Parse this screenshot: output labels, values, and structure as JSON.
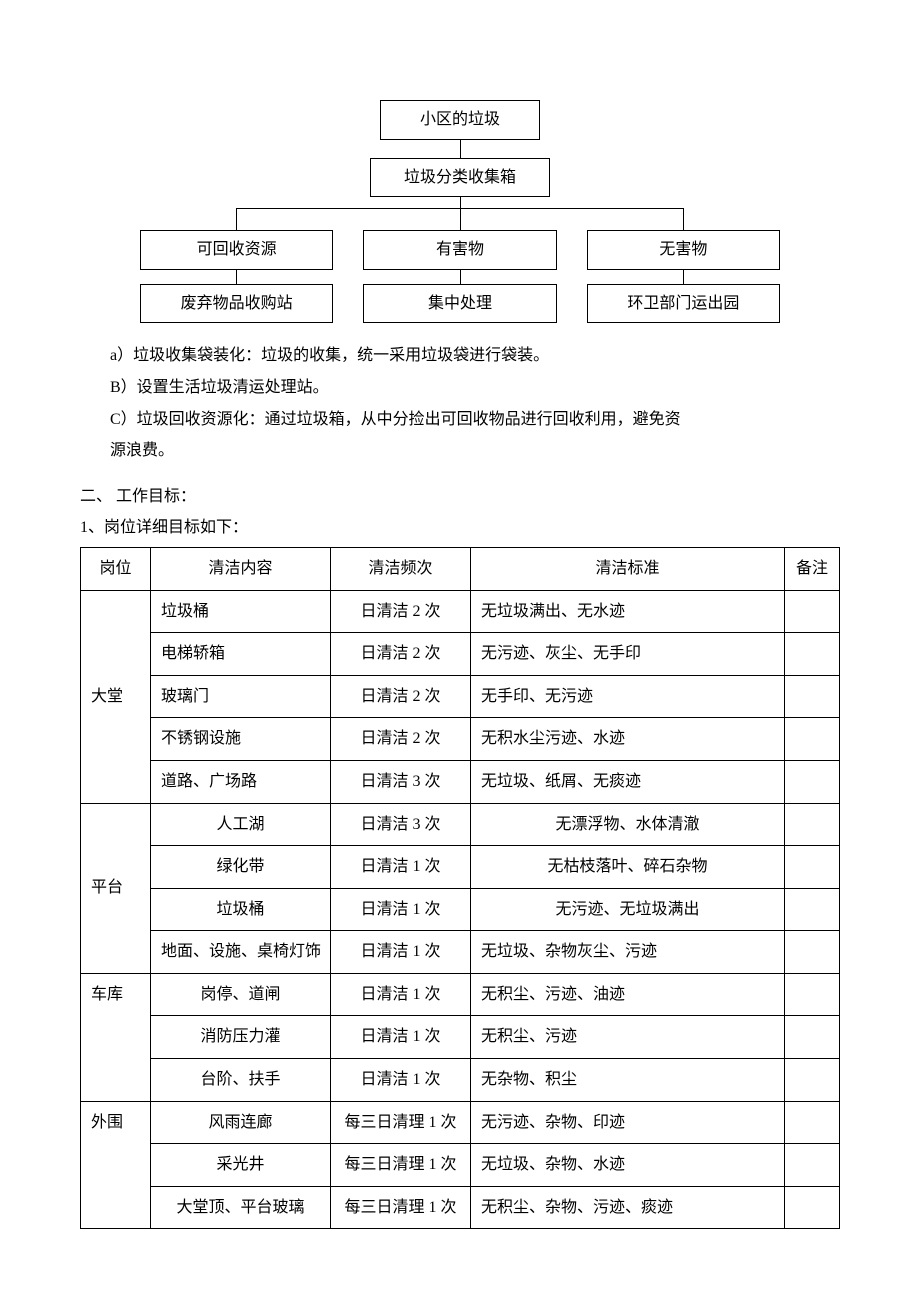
{
  "flowchart": {
    "level1": "小区的垃圾",
    "level2": "垃圾分类收集箱",
    "level3": [
      "可回收资源",
      "有害物",
      "无害物"
    ],
    "level4": [
      "废弃物品收购站",
      "集中处理",
      "环卫部门运出园"
    ]
  },
  "paragraphs": {
    "a": "a）垃圾收集袋装化：垃圾的收集，统一采用垃圾袋进行袋装。",
    "b": "B）设置生活垃圾清运处理站。",
    "c_line1": "C）垃圾回收资源化：通过垃圾箱，从中分捡出可回收物品进行回收利用，避免资",
    "c_line2": "源浪费。"
  },
  "section": {
    "heading2": "二、 工作目标：",
    "sub1": "1、岗位详细目标如下："
  },
  "table": {
    "headers": [
      "岗位",
      "清洁内容",
      "清洁频次",
      "清洁标准",
      "备注"
    ],
    "groups": [
      {
        "post": "大堂",
        "rows": [
          {
            "content": "垃圾桶",
            "freq": "日清洁 2 次",
            "std": "无垃圾满出、无水迹",
            "content_align": "left",
            "std_align": "left"
          },
          {
            "content": "电梯轿箱",
            "freq": "日清洁 2 次",
            "std": "无污迹、灰尘、无手印",
            "content_align": "left",
            "std_align": "left"
          },
          {
            "content": "玻璃门",
            "freq": "日清洁 2 次",
            "std": "无手印、无污迹",
            "content_align": "left",
            "std_align": "left"
          },
          {
            "content": "不锈钢设施",
            "freq": "日清洁 2 次",
            "std": "无积水尘污迹、水迹",
            "content_align": "left",
            "std_align": "left"
          },
          {
            "content": "道路、广场路",
            "freq": "日清洁 3 次",
            "std": "无垃圾、纸屑、无痰迹",
            "content_align": "left",
            "std_align": "left"
          }
        ]
      },
      {
        "post": "平台",
        "rows": [
          {
            "content": "人工湖",
            "freq": "日清洁 3 次",
            "std": "无漂浮物、水体清澈",
            "content_align": "center",
            "std_align": "center"
          },
          {
            "content": "绿化带",
            "freq": "日清洁 1 次",
            "std": "无枯枝落叶、碎石杂物",
            "content_align": "center",
            "std_align": "center"
          },
          {
            "content": "垃圾桶",
            "freq": "日清洁 1 次",
            "std": "无污迹、无垃圾满出",
            "content_align": "center",
            "std_align": "center"
          },
          {
            "content": "地面、设施、桌椅灯饰",
            "freq": "日清洁 1 次",
            "std": "无垃圾、杂物灰尘、污迹",
            "content_align": "left",
            "std_align": "left"
          }
        ]
      },
      {
        "post": "车库",
        "rows": [
          {
            "content": "岗停、道闸",
            "freq": "日清洁 1 次",
            "std": "无积尘、污迹、油迹",
            "content_align": "center",
            "std_align": "left"
          },
          {
            "content": "消防压力灌",
            "freq": "日清洁 1 次",
            "std": "无积尘、污迹",
            "content_align": "center",
            "std_align": "left"
          },
          {
            "content": "台阶、扶手",
            "freq": "日清洁 1 次",
            "std": "无杂物、积尘",
            "content_align": "center",
            "std_align": "left"
          }
        ]
      },
      {
        "post": "外围",
        "rows": [
          {
            "content": "风雨连廊",
            "freq": "每三日清理 1 次",
            "std": "无污迹、杂物、印迹",
            "content_align": "center",
            "std_align": "left"
          },
          {
            "content": "采光井",
            "freq": "每三日清理 1 次",
            "std": "无垃圾、杂物、水迹",
            "content_align": "center",
            "std_align": "left"
          },
          {
            "content": "大堂顶、平台玻璃",
            "freq": "每三日清理 1 次",
            "std": "无积尘、杂物、污迹、痰迹",
            "content_align": "center",
            "std_align": "left"
          }
        ]
      }
    ]
  }
}
